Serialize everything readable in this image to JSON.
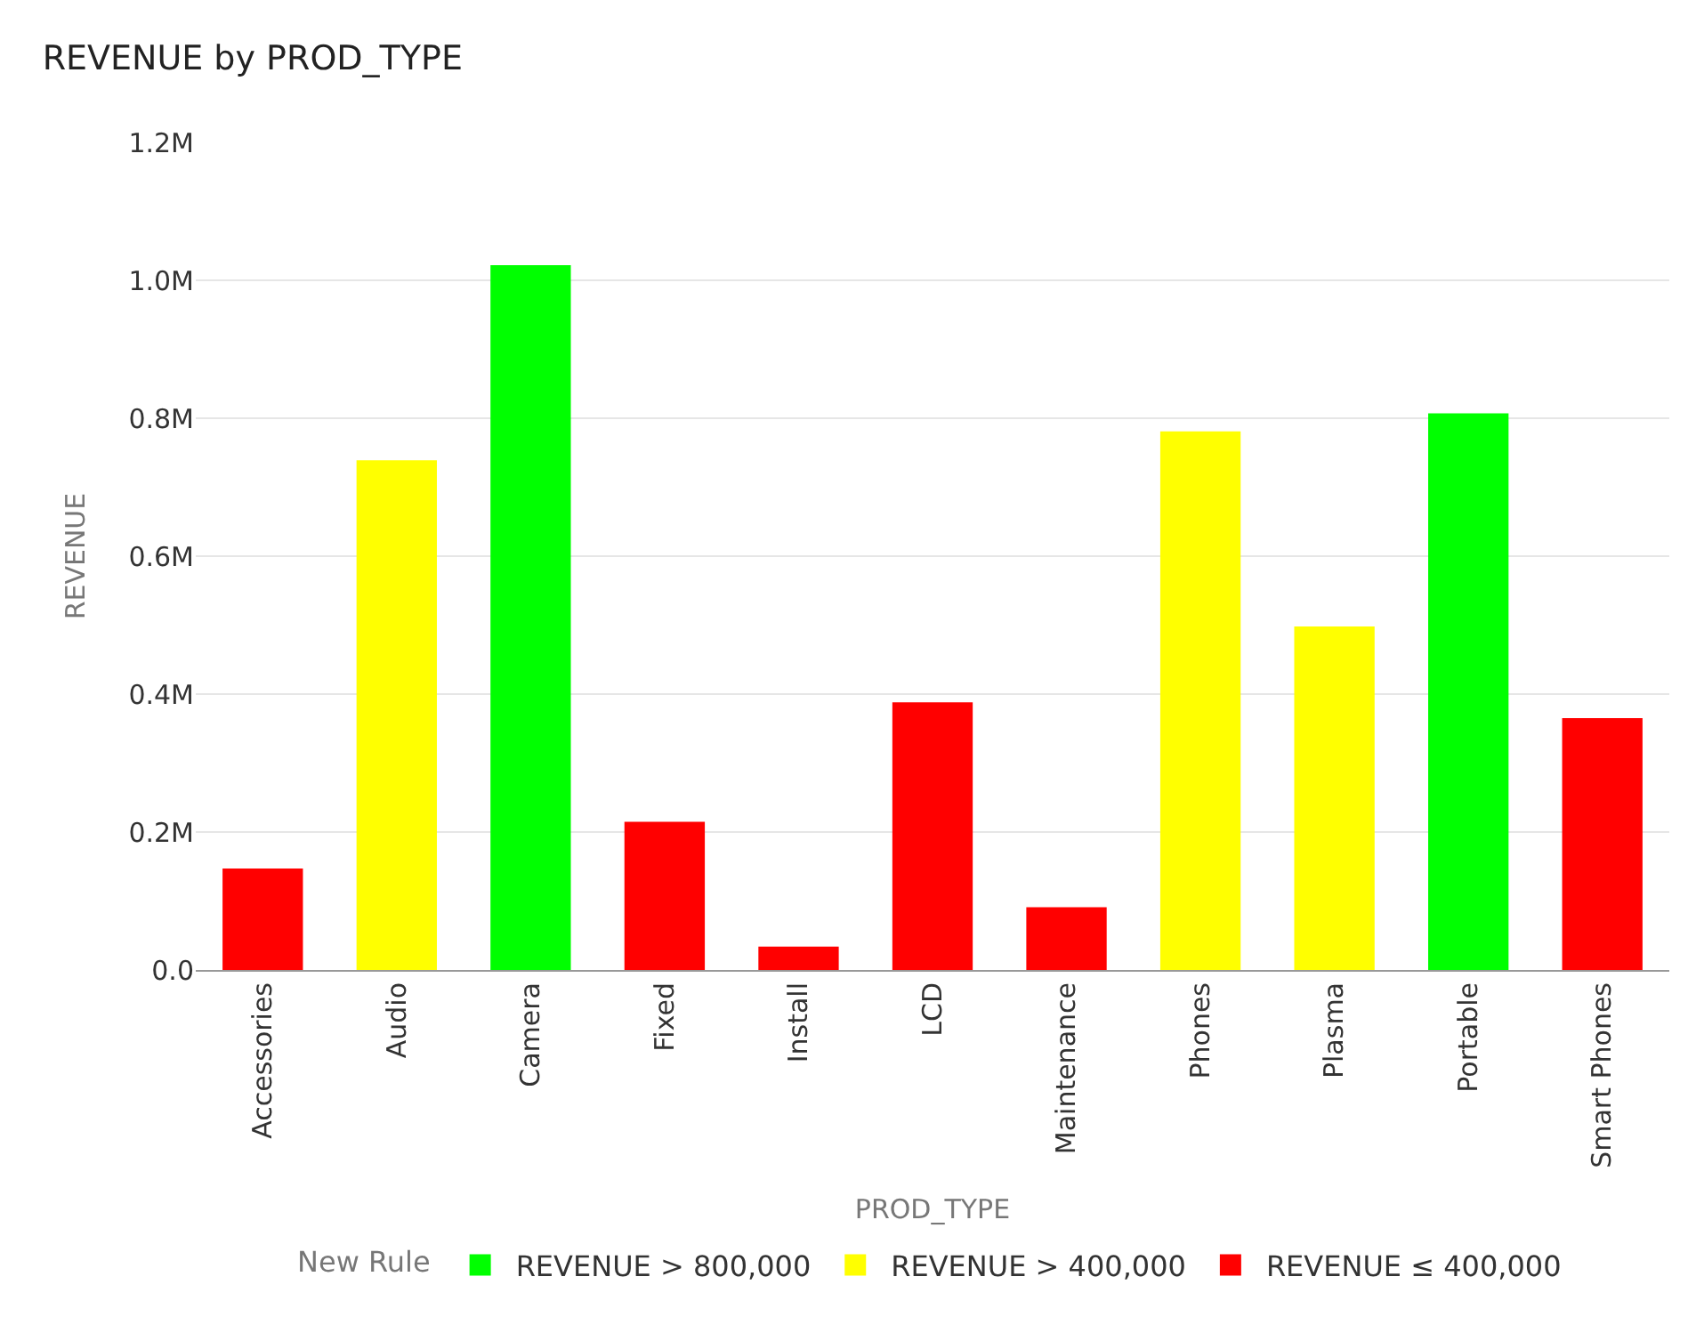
{
  "chart_data": {
    "type": "bar",
    "title": "REVENUE by PROD_TYPE",
    "xlabel": "PROD_TYPE",
    "ylabel": "REVENUE",
    "legend_title": "New Rule",
    "categories": [
      "Accessories",
      "Audio",
      "Camera",
      "Fixed",
      "Install",
      "LCD",
      "Maintenance",
      "Phones",
      "Plasma",
      "Portable",
      "Smart Phones"
    ],
    "series": [
      {
        "name": "REVENUE > 800,000",
        "color": "#00ff00",
        "values": [
          null,
          null,
          1022000,
          null,
          null,
          null,
          null,
          null,
          null,
          807000,
          null
        ]
      },
      {
        "name": "REVENUE > 400,000",
        "color": "#ffff00",
        "values": [
          null,
          739000,
          null,
          null,
          null,
          null,
          null,
          781000,
          498000,
          null,
          null
        ]
      },
      {
        "name": "REVENUE ≤ 400,000",
        "color": "#ff0000",
        "values": [
          147000,
          null,
          null,
          215000,
          34000,
          388000,
          91000,
          null,
          null,
          null,
          365000
        ]
      }
    ],
    "ylim": [
      0,
      1200000
    ],
    "yticks": [
      {
        "value": 0,
        "label": "0.0"
      },
      {
        "value": 200000,
        "label": "0.2M"
      },
      {
        "value": 400000,
        "label": "0.4M"
      },
      {
        "value": 600000,
        "label": "0.6M"
      },
      {
        "value": 800000,
        "label": "0.8M"
      },
      {
        "value": 1000000,
        "label": "1.0M"
      },
      {
        "value": 1200000,
        "label": "1.2M"
      }
    ],
    "grid": "y",
    "legend": "bottom"
  }
}
